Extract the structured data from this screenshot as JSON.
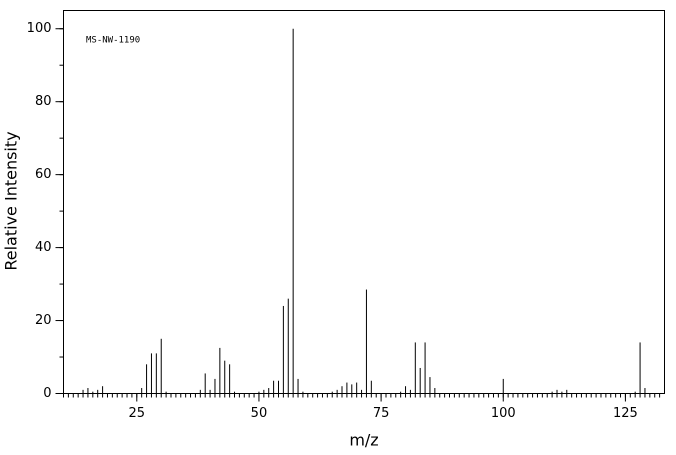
{
  "chart_data": {
    "type": "stick",
    "annotation": "MS-NW-1190",
    "xlabel": "m/z",
    "ylabel": "Relative Intensity",
    "x": [
      14,
      15,
      16,
      17,
      18,
      26,
      27,
      28,
      29,
      30,
      31,
      38,
      39,
      40,
      41,
      42,
      43,
      44,
      45,
      50,
      51,
      52,
      53,
      54,
      55,
      56,
      57,
      58,
      59,
      65,
      66,
      67,
      68,
      69,
      70,
      71,
      72,
      73,
      79,
      80,
      81,
      82,
      83,
      84,
      85,
      86,
      100,
      110,
      111,
      112,
      113,
      127,
      128,
      129
    ],
    "values": [
      1,
      1.5,
      0.5,
      1,
      2,
      1.5,
      8,
      11,
      11,
      15,
      0.5,
      1,
      5.5,
      1,
      4,
      12.5,
      9,
      8,
      0.5,
      0.5,
      1,
      1.5,
      3.5,
      3.5,
      24,
      26,
      100,
      4,
      0.5,
      0.5,
      1,
      2,
      3,
      2.5,
      3,
      1,
      28.5,
      3.5,
      0.5,
      2,
      1,
      14,
      7,
      14,
      4.5,
      1.5,
      4,
      0.5,
      1,
      0.5,
      1,
      0.5,
      14,
      1.5
    ],
    "color": "#000000",
    "xlim": [
      10,
      133
    ],
    "xticks": [
      25,
      50,
      75,
      100,
      125
    ],
    "ylim": [
      0,
      105
    ],
    "yticks": [
      0,
      20,
      40,
      60,
      80,
      100
    ]
  }
}
